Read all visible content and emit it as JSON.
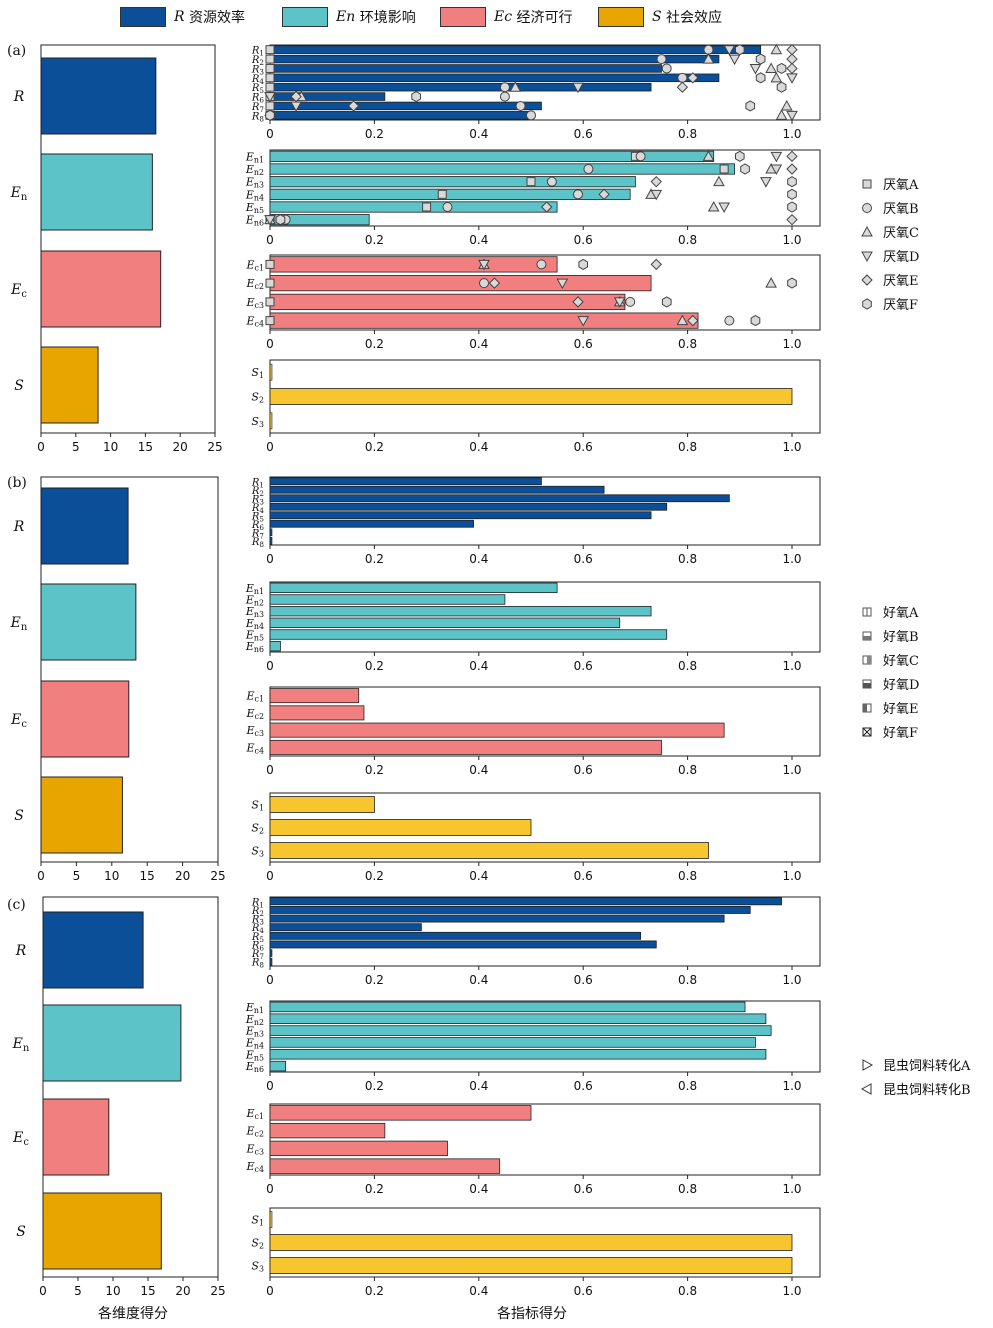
{
  "legend": [
    {
      "sym": "R",
      "label": "资源效率",
      "color": "#0A4F97"
    },
    {
      "sym": "En",
      "label": "环境影响",
      "color": "#5CC4C8"
    },
    {
      "sym": "Ec",
      "label": "经济可行",
      "color": "#F27F80"
    },
    {
      "sym": "S",
      "label": "社会效应",
      "color": "#E8A500"
    }
  ],
  "colors": {
    "R": "#0A4F97",
    "En": "#5CC4C8",
    "Ec": "#F27F80",
    "S_a": "#E8A500",
    "S_bar": "#F7C52E"
  },
  "panel_labels": [
    "(a)",
    "(b)",
    "(c)"
  ],
  "left_axis_ticks": [
    "0",
    "5",
    "10",
    "15",
    "20",
    "25"
  ],
  "right_axis_ticks": [
    "0",
    "0.2",
    "0.4",
    "0.6",
    "0.8",
    "1.0"
  ],
  "xlabel_left": "各维度得分",
  "xlabel_right": "各指标得分",
  "dim_labels": [
    "R",
    "En",
    "Ec",
    "S"
  ],
  "marker_legends": [
    {
      "panel": "a",
      "items": [
        {
          "marker": "square",
          "label": "厌氧A"
        },
        {
          "marker": "circle",
          "label": "厌氧B"
        },
        {
          "marker": "triangle-up",
          "label": "厌氧C"
        },
        {
          "marker": "triangle-down",
          "label": "厌氧D"
        },
        {
          "marker": "diamond",
          "label": "厌氧E"
        },
        {
          "marker": "hexagon",
          "label": "厌氧F"
        }
      ]
    },
    {
      "panel": "b",
      "items": [
        {
          "marker": "sq-vert",
          "label": "好氧A"
        },
        {
          "marker": "sq-half-bottom",
          "label": "好氧B"
        },
        {
          "marker": "sq-half-right",
          "label": "好氧C"
        },
        {
          "marker": "sq-half-bottom-dark",
          "label": "好氧D"
        },
        {
          "marker": "sq-half-left",
          "label": "好氧E"
        },
        {
          "marker": "sq-x",
          "label": "好氧F"
        }
      ]
    },
    {
      "panel": "c",
      "items": [
        {
          "marker": "tri-right",
          "label": "昆虫饲料转化A"
        },
        {
          "marker": "tri-left",
          "label": "昆虫饲料转化B"
        }
      ]
    }
  ],
  "chart_data": [
    {
      "panel": "(a)",
      "type": "bar",
      "dimension_scores": {
        "categories": [
          "R",
          "En",
          "Ec",
          "S"
        ],
        "values": [
          16.5,
          16.0,
          17.2,
          8.2
        ],
        "xlim": [
          0,
          25
        ]
      },
      "indicator_scores": {
        "R": {
          "labels": [
            "R1",
            "R2",
            "R3",
            "R4",
            "R5",
            "R6",
            "R7",
            "R8"
          ],
          "values": [
            0.94,
            0.86,
            0.75,
            0.86,
            0.73,
            0.22,
            0.52,
            0.5
          ],
          "markers": [
            {
              "series": "厌氧A",
              "x": [
                0.0,
                0.0,
                0.0,
                0.0,
                0.0,
                0.0,
                0.0,
                0.0
              ]
            },
            {
              "series": "厌氧B",
              "x": [
                0.84,
                0.75,
                0.76,
                0.79,
                0.45,
                0.45,
                0.48,
                0.5
              ]
            },
            {
              "series": "厌氧C",
              "x": [
                0.97,
                0.84,
                0.96,
                0.97,
                0.47,
                0.06,
                0.99,
                0.98
              ]
            },
            {
              "series": "厌氧D",
              "x": [
                0.88,
                0.89,
                0.93,
                1.0,
                0.59,
                0.0,
                0.05,
                1.0
              ]
            },
            {
              "series": "厌氧E",
              "x": [
                1.0,
                1.0,
                1.0,
                0.81,
                0.79,
                0.05,
                0.16,
                0.0
              ]
            },
            {
              "series": "厌氧F",
              "x": [
                0.9,
                0.94,
                0.98,
                0.94,
                0.98,
                0.28,
                0.92,
                0.0
              ]
            }
          ]
        },
        "En": {
          "labels": [
            "En1",
            "En2",
            "En3",
            "En4",
            "En5",
            "En6"
          ],
          "values": [
            0.85,
            0.89,
            0.7,
            0.69,
            0.55,
            0.19
          ],
          "markers": [
            {
              "series": "厌氧A",
              "x": [
                0.7,
                0.87,
                0.5,
                0.33,
                0.3,
                0.0
              ]
            },
            {
              "series": "厌氧B",
              "x": [
                0.71,
                0.61,
                0.54,
                0.59,
                0.34,
                0.03
              ]
            },
            {
              "series": "厌氧C",
              "x": [
                0.84,
                0.96,
                0.86,
                0.73,
                0.85,
                0.0
              ]
            },
            {
              "series": "厌氧D",
              "x": [
                0.97,
                0.97,
                0.95,
                0.74,
                0.87,
                0.0
              ]
            },
            {
              "series": "厌氧E",
              "x": [
                1.0,
                1.0,
                0.74,
                0.64,
                0.53,
                1.0
              ]
            },
            {
              "series": "厌氧F",
              "x": [
                0.9,
                0.91,
                1.0,
                1.0,
                1.0,
                0.02
              ]
            }
          ]
        },
        "Ec": {
          "labels": [
            "Ec1",
            "Ec2",
            "Ec3",
            "Ec4"
          ],
          "values": [
            0.55,
            0.73,
            0.68,
            0.82
          ],
          "markers": [
            {
              "series": "厌氧A",
              "x": [
                0.0,
                0.0,
                0.0,
                0.0
              ]
            },
            {
              "series": "厌氧B",
              "x": [
                0.52,
                0.41,
                0.69,
                0.88
              ]
            },
            {
              "series": "厌氧C",
              "x": [
                0.41,
                0.96,
                0.67,
                0.79
              ]
            },
            {
              "series": "厌氧D",
              "x": [
                0.41,
                0.56,
                0.67,
                0.6
              ]
            },
            {
              "series": "厌氧E",
              "x": [
                0.74,
                0.43,
                0.59,
                0.81
              ]
            },
            {
              "series": "厌氧F",
              "x": [
                0.6,
                1.0,
                0.76,
                0.93
              ]
            }
          ]
        },
        "S": {
          "labels": [
            "S1",
            "S2",
            "S3"
          ],
          "values": [
            0.0,
            1.0,
            0.0
          ]
        }
      },
      "xlim": [
        0,
        1.0
      ]
    },
    {
      "panel": "(b)",
      "type": "bar",
      "dimension_scores": {
        "categories": [
          "R",
          "En",
          "Ec",
          "S"
        ],
        "values": [
          12.3,
          13.4,
          12.4,
          11.5
        ],
        "xlim": [
          0,
          25
        ]
      },
      "indicator_scores": {
        "R": {
          "labels": [
            "R1",
            "R2",
            "R3",
            "R4",
            "R5",
            "R6",
            "R7",
            "R8"
          ],
          "values": [
            0.52,
            0.64,
            0.88,
            0.76,
            0.73,
            0.39,
            0.0,
            0.0
          ]
        },
        "En": {
          "labels": [
            "En1",
            "En2",
            "En3",
            "En4",
            "En5",
            "En6"
          ],
          "values": [
            0.55,
            0.45,
            0.73,
            0.67,
            0.76,
            0.02
          ]
        },
        "Ec": {
          "labels": [
            "Ec1",
            "Ec2",
            "Ec3",
            "Ec4"
          ],
          "values": [
            0.17,
            0.18,
            0.87,
            0.75
          ]
        },
        "S": {
          "labels": [
            "S1",
            "S2",
            "S3"
          ],
          "values": [
            0.2,
            0.5,
            0.84
          ]
        }
      },
      "xlim": [
        0,
        1.0
      ]
    },
    {
      "panel": "(c)",
      "type": "bar",
      "dimension_scores": {
        "categories": [
          "R",
          "En",
          "Ec",
          "S"
        ],
        "values": [
          14.3,
          19.7,
          9.4,
          16.9
        ],
        "xlim": [
          0,
          25
        ]
      },
      "indicator_scores": {
        "R": {
          "labels": [
            "R1",
            "R2",
            "R3",
            "R4",
            "R5",
            "R6",
            "R7",
            "R8"
          ],
          "values": [
            0.98,
            0.92,
            0.87,
            0.29,
            0.71,
            0.74,
            0.0,
            0.0
          ]
        },
        "En": {
          "labels": [
            "En1",
            "En2",
            "En3",
            "En4",
            "En5",
            "En6"
          ],
          "values": [
            0.91,
            0.95,
            0.96,
            0.93,
            0.95,
            0.03
          ]
        },
        "Ec": {
          "labels": [
            "Ec1",
            "Ec2",
            "Ec3",
            "Ec4"
          ],
          "values": [
            0.5,
            0.22,
            0.34,
            0.44
          ]
        },
        "S": {
          "labels": [
            "S1",
            "S2",
            "S3"
          ],
          "values": [
            0.0,
            1.0,
            1.0
          ]
        }
      },
      "xlim": [
        0,
        1.0
      ]
    }
  ]
}
